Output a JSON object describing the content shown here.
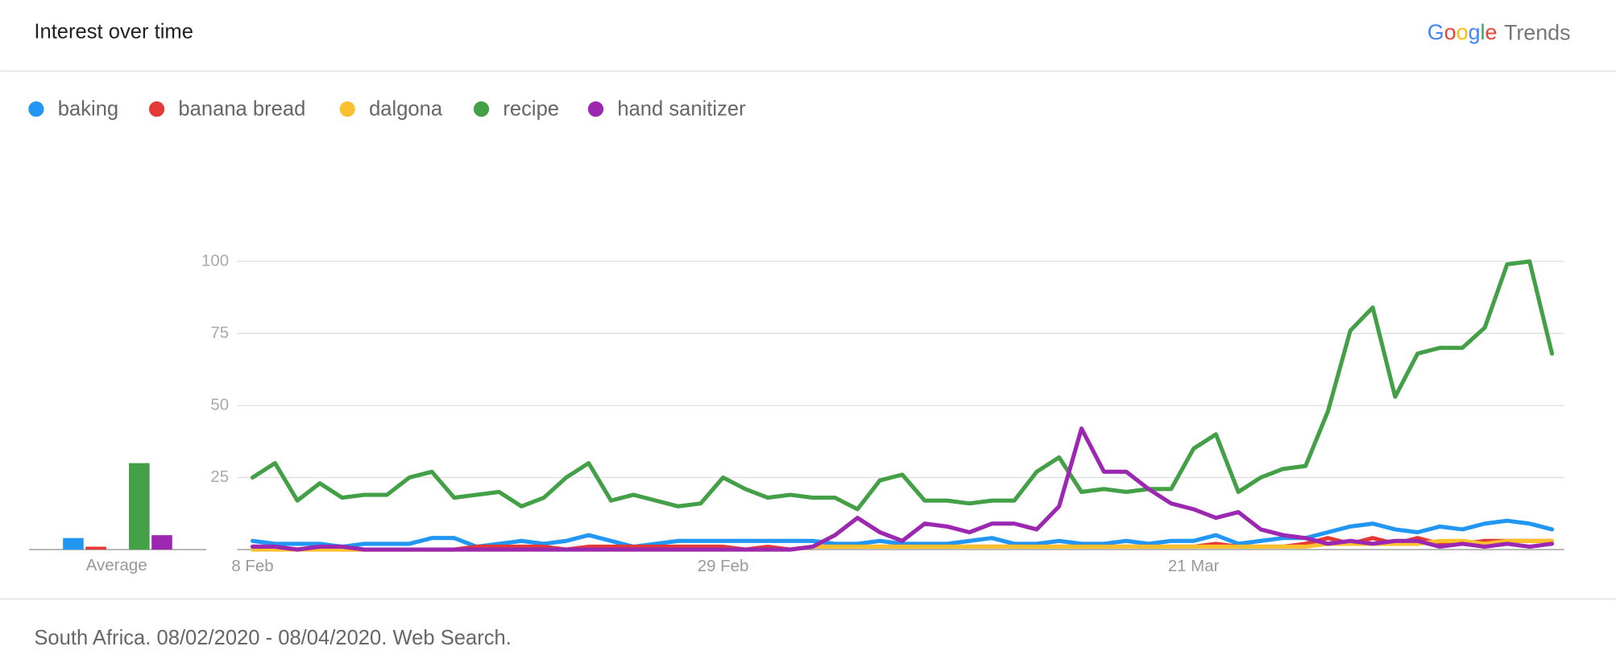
{
  "header": {
    "title": "Interest over time",
    "logo": {
      "brand": "Google",
      "product": "Trends"
    }
  },
  "chart_data": {
    "type": "line",
    "categories": [
      "8 Feb",
      null,
      null,
      null,
      null,
      null,
      null,
      null,
      null,
      null,
      null,
      null,
      null,
      null,
      null,
      null,
      null,
      null,
      null,
      null,
      null,
      "29 Feb",
      null,
      null,
      null,
      null,
      null,
      null,
      null,
      null,
      null,
      null,
      null,
      null,
      null,
      null,
      null,
      null,
      null,
      null,
      null,
      null,
      "21 Mar",
      null,
      null,
      null,
      null,
      null,
      null,
      null,
      null,
      null,
      null,
      null,
      null,
      null,
      null,
      null,
      null
    ],
    "ylim": [
      0,
      100
    ],
    "yticks": [
      25,
      50,
      75,
      100
    ],
    "grid": true,
    "average_label": "Average",
    "series": [
      {
        "name": "baking",
        "color": "#2196f3",
        "average": 4,
        "values": [
          3,
          2,
          2,
          2,
          1,
          2,
          2,
          2,
          4,
          4,
          1,
          2,
          3,
          2,
          3,
          5,
          3,
          1,
          2,
          3,
          3,
          3,
          3,
          3,
          3,
          3,
          2,
          2,
          3,
          2,
          2,
          2,
          3,
          4,
          2,
          2,
          3,
          2,
          2,
          3,
          2,
          3,
          3,
          5,
          2,
          3,
          4,
          4,
          6,
          8,
          9,
          7,
          6,
          8,
          7,
          9,
          10,
          9,
          7
        ]
      },
      {
        "name": "banana bread",
        "color": "#e53935",
        "average": 1,
        "values": [
          1,
          1,
          0,
          1,
          0,
          0,
          0,
          0,
          0,
          0,
          1,
          1,
          1,
          1,
          0,
          1,
          1,
          1,
          1,
          1,
          1,
          1,
          0,
          1,
          0,
          1,
          1,
          1,
          1,
          1,
          1,
          1,
          1,
          1,
          1,
          1,
          1,
          1,
          1,
          1,
          1,
          1,
          1,
          2,
          1,
          1,
          1,
          2,
          4,
          2,
          4,
          2,
          4,
          2,
          2,
          3,
          3,
          3,
          3
        ]
      },
      {
        "name": "dalgona",
        "color": "#fbc02d",
        "average": 0,
        "values": [
          0,
          0,
          0,
          0,
          0,
          0,
          0,
          0,
          0,
          0,
          0,
          0,
          0,
          0,
          0,
          0,
          0,
          0,
          0,
          0,
          0,
          0,
          0,
          0,
          0,
          1,
          1,
          1,
          1,
          1,
          1,
          1,
          1,
          1,
          1,
          1,
          1,
          1,
          1,
          1,
          1,
          1,
          1,
          1,
          1,
          1,
          1,
          1,
          2,
          2,
          2,
          2,
          2,
          3,
          3,
          2,
          3,
          3,
          3
        ]
      },
      {
        "name": "recipe",
        "color": "#43a047",
        "average": 30,
        "values": [
          25,
          30,
          17,
          23,
          18,
          19,
          19,
          25,
          27,
          18,
          19,
          20,
          15,
          18,
          25,
          30,
          17,
          19,
          17,
          15,
          16,
          25,
          21,
          18,
          19,
          18,
          18,
          14,
          24,
          26,
          17,
          17,
          16,
          17,
          17,
          27,
          32,
          20,
          21,
          20,
          21,
          21,
          35,
          40,
          20,
          25,
          28,
          29,
          48,
          76,
          84,
          53,
          68,
          70,
          70,
          77,
          99,
          100,
          68
        ]
      },
      {
        "name": "hand sanitizer",
        "color": "#9c27b0",
        "average": 5,
        "values": [
          1,
          1,
          0,
          1,
          1,
          0,
          0,
          0,
          0,
          0,
          0,
          0,
          0,
          0,
          0,
          0,
          0,
          0,
          0,
          0,
          0,
          0,
          0,
          0,
          0,
          1,
          5,
          11,
          6,
          3,
          9,
          8,
          6,
          9,
          9,
          7,
          15,
          42,
          27,
          27,
          21,
          16,
          14,
          11,
          13,
          7,
          5,
          4,
          2,
          3,
          2,
          3,
          3,
          1,
          2,
          1,
          2,
          1,
          2
        ]
      }
    ]
  },
  "footer": {
    "text": "South Africa. 08/02/2020 - 08/04/2020. Web Search."
  }
}
